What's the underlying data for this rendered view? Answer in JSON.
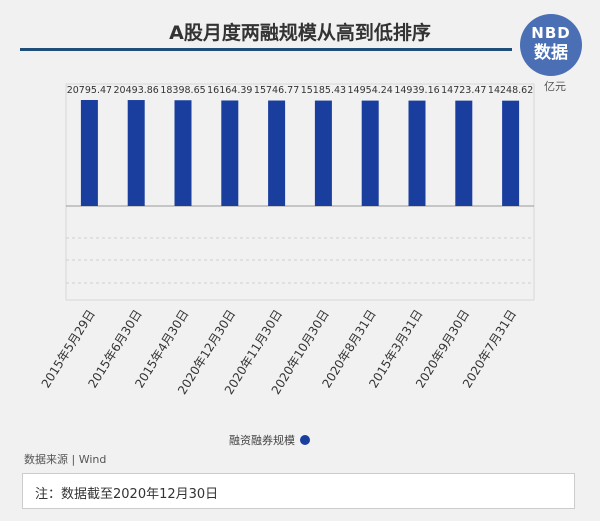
{
  "title": "A股月度两融规模从高到低排序",
  "logo": {
    "line1": "NBD",
    "line2": "数据"
  },
  "unit": "亿元",
  "legend_label": "融资融券规模",
  "source": "数据来源 | Wind",
  "note": "注：数据截至2020年12月30日",
  "colors": {
    "bar": "#1a3e9e",
    "title_rule": "#1f4e79",
    "logo": "#4a6fb5"
  },
  "chart_data": {
    "type": "bar",
    "title": "A股月度两融规模从高到低排序",
    "categories": [
      "2015年5月29日",
      "2015年6月30日",
      "2015年4月30日",
      "2020年12月30日",
      "2020年11月30日",
      "2020年10月30日",
      "2020年8月31日",
      "2015年3月31日",
      "2020年9月30日",
      "2020年7月31日"
    ],
    "series": [
      {
        "name": "融资融券规模",
        "values": [
          20795.47,
          20493.86,
          18398.65,
          16164.39,
          15746.77,
          15185.43,
          14954.24,
          14939.16,
          14723.47,
          14248.62
        ]
      }
    ],
    "data_labels": [
      "20795.47",
      "20493.86",
      "18398.65",
      "16164.39",
      "15746.77",
      "15185.43",
      "14954.24",
      "14939.16",
      "14723.47",
      "14248.62"
    ],
    "ylabel": "亿元",
    "grid": true,
    "legend_position": "bottom"
  }
}
